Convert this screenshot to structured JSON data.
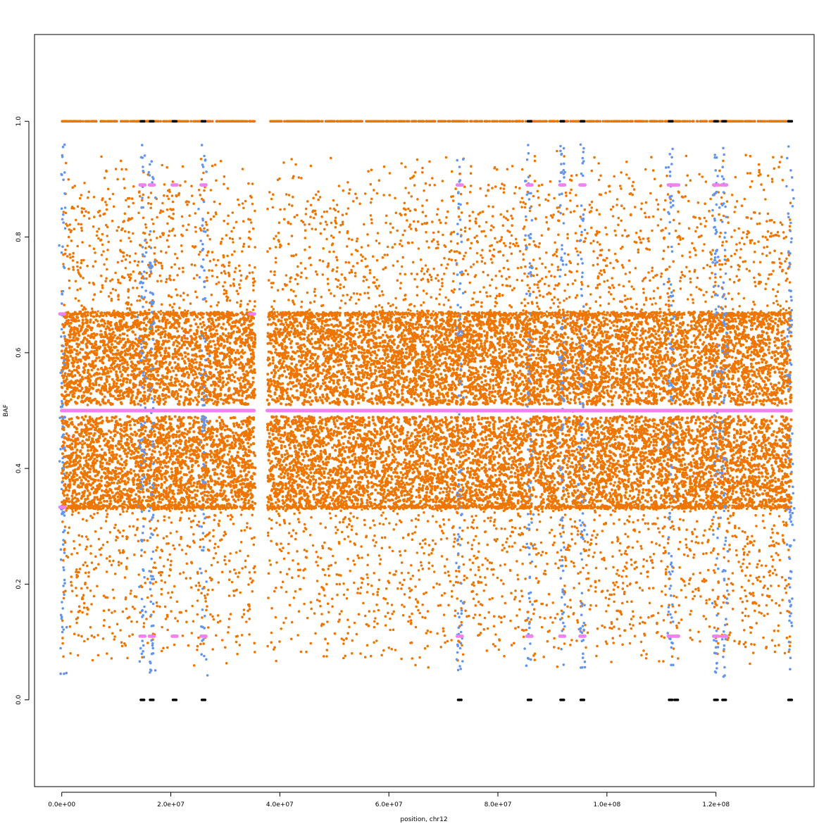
{
  "chart_data": {
    "type": "scatter",
    "title": "",
    "xlabel": "position, chr12",
    "ylabel": "BAF",
    "xlim": [
      -5000000,
      138000000
    ],
    "ylim": [
      -0.15,
      1.15
    ],
    "x_ticks": [
      0,
      20000000,
      40000000,
      60000000,
      80000000,
      100000000,
      120000000
    ],
    "x_tick_labels": [
      "0.0e+00",
      "2.0e+07",
      "4.0e+07",
      "6.0e+07",
      "8.0e+07",
      "1.0e+08",
      "1.2e+08"
    ],
    "y_ticks": [
      0.0,
      0.2,
      0.4,
      0.6,
      0.8,
      1.0
    ],
    "y_tick_labels": [
      "0.0",
      "0.2",
      "0.4",
      "0.6",
      "0.8",
      "1.0"
    ],
    "grid": false,
    "legend": "none",
    "colors": {
      "snp_baf": "#ee7600",
      "germline_baf": "#6495ed",
      "segment_mean": "#ee82ee",
      "homozygous": "#000000"
    },
    "chromosome_length": 133800000,
    "centromere_gap": [
      35500000,
      37700000
    ],
    "series": [
      {
        "color": "#ee7600",
        "description_only_for_rendering": false,
        "heterozygous_band_ranges": [
          [
            0.33,
            0.49
          ],
          [
            0.51,
            0.67
          ]
        ],
        "levels": [
          0.0,
          0.333,
          0.5,
          0.667,
          1.0
        ]
      },
      {
        "color": "#ee82ee",
        "segments": [
          {
            "start": 0,
            "end": 35300000,
            "value": 0.5
          },
          {
            "start": 37700000,
            "end": 85800000,
            "value": 0.5
          },
          {
            "start": 86000000,
            "end": 133800000,
            "value": 0.5
          }
        ],
        "clusters": [
          {
            "x": 14800000,
            "y": 0.89
          },
          {
            "x": 16500000,
            "y": 0.89
          },
          {
            "x": 20700000,
            "y": 0.89
          },
          {
            "x": 26000000,
            "y": 0.89
          },
          {
            "x": 73000000,
            "y": 0.89
          },
          {
            "x": 85800000,
            "y": 0.89
          },
          {
            "x": 91800000,
            "y": 0.89
          },
          {
            "x": 95500000,
            "y": 0.89
          },
          {
            "x": 111700000,
            "y": 0.89
          },
          {
            "x": 112700000,
            "y": 0.89
          },
          {
            "x": 120000000,
            "y": 0.89
          },
          {
            "x": 121500000,
            "y": 0.89
          },
          {
            "x": 14800000,
            "y": 0.11
          },
          {
            "x": 16500000,
            "y": 0.11
          },
          {
            "x": 20700000,
            "y": 0.11
          },
          {
            "x": 26000000,
            "y": 0.11
          },
          {
            "x": 73000000,
            "y": 0.11
          },
          {
            "x": 85800000,
            "y": 0.11
          },
          {
            "x": 91800000,
            "y": 0.11
          },
          {
            "x": 95500000,
            "y": 0.11
          },
          {
            "x": 111700000,
            "y": 0.11
          },
          {
            "x": 112700000,
            "y": 0.11
          },
          {
            "x": 120000000,
            "y": 0.11
          },
          {
            "x": 121500000,
            "y": 0.11
          },
          {
            "x": 100000,
            "y": 0.667
          },
          {
            "x": 100000,
            "y": 0.333
          },
          {
            "x": 34900000,
            "y": 0.667
          }
        ]
      },
      {
        "color": "#000000",
        "points": [
          {
            "x": 14800000,
            "y": 1.0
          },
          {
            "x": 16500000,
            "y": 1.0
          },
          {
            "x": 20700000,
            "y": 1.0
          },
          {
            "x": 26000000,
            "y": 1.0
          },
          {
            "x": 85800000,
            "y": 1.0
          },
          {
            "x": 91800000,
            "y": 1.0
          },
          {
            "x": 95500000,
            "y": 1.0
          },
          {
            "x": 111700000,
            "y": 1.0
          },
          {
            "x": 120000000,
            "y": 1.0
          },
          {
            "x": 121500000,
            "y": 1.0
          },
          {
            "x": 133600000,
            "y": 1.0
          },
          {
            "x": 14800000,
            "y": 0.0
          },
          {
            "x": 16500000,
            "y": 0.0
          },
          {
            "x": 20700000,
            "y": 0.0
          },
          {
            "x": 26000000,
            "y": 0.0
          },
          {
            "x": 73000000,
            "y": 0.0
          },
          {
            "x": 85800000,
            "y": 0.0
          },
          {
            "x": 91800000,
            "y": 0.0
          },
          {
            "x": 95500000,
            "y": 0.0
          },
          {
            "x": 111700000,
            "y": 0.0
          },
          {
            "x": 112700000,
            "y": 0.0
          },
          {
            "x": 120000000,
            "y": 0.0
          },
          {
            "x": 121500000,
            "y": 0.0
          },
          {
            "x": 133600000,
            "y": 0.0
          }
        ]
      }
    ]
  }
}
